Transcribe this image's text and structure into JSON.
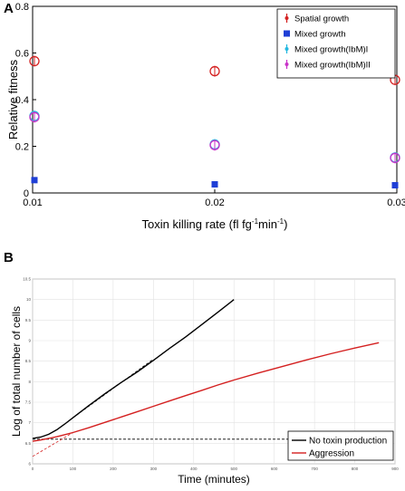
{
  "chart_data": [
    {
      "panel": "A",
      "type": "scatter",
      "title": "",
      "xlabel_main": "Toxin killing rate (fl fg",
      "xlabel_sup1": "-1",
      "xlabel_mid": "min",
      "xlabel_sup2": "-1",
      "xlabel_end": ")",
      "ylabel": "Relative fitness",
      "xlim": [
        0.01,
        0.03
      ],
      "ylim": [
        0,
        0.8
      ],
      "xticks": [
        0.01,
        0.02,
        0.03
      ],
      "xtick_labels": [
        "0.01",
        "0.02",
        "0.03"
      ],
      "yticks": [
        0,
        0.2,
        0.4,
        0.6,
        0.8
      ],
      "ytick_labels": [
        "0",
        "0.2",
        "0.4",
        "0.6",
        "0.8"
      ],
      "grid": false,
      "legend_position": "top-right",
      "series": [
        {
          "name": "Spatial growth",
          "marker": "circle-errorbar",
          "color": "#d42020",
          "x": [
            0.01,
            0.02,
            0.03
          ],
          "y": [
            0.565,
            0.522,
            0.485
          ]
        },
        {
          "name": "Mixed growth",
          "marker": "square",
          "color": "#1f3fd6",
          "x": [
            0.01,
            0.02,
            0.03
          ],
          "y": [
            0.055,
            0.037,
            0.033
          ]
        },
        {
          "name": "Mixed growth(IbM)I",
          "marker": "circle-errorbar",
          "color": "#22b8e0",
          "x": [
            0.01,
            0.02,
            0.03
          ],
          "y": [
            0.33,
            0.208,
            0.152
          ]
        },
        {
          "name": "Mixed growth(IbM)II",
          "marker": "circle-errorbar",
          "color": "#c832c8",
          "x": [
            0.01,
            0.02,
            0.03
          ],
          "y": [
            0.325,
            0.205,
            0.15
          ]
        }
      ]
    },
    {
      "panel": "B",
      "type": "line",
      "title": "",
      "xlabel": "Time (minutes)",
      "ylabel": "Log of total number of cells",
      "xlim": [
        0,
        900
      ],
      "ylim": [
        6,
        10.5
      ],
      "xticks": [
        0,
        100,
        200,
        300,
        400,
        500,
        600,
        700,
        800,
        900
      ],
      "xtick_labels": [
        "0",
        "100",
        "200",
        "300",
        "400",
        "500",
        "600",
        "700",
        "800",
        "900"
      ],
      "yticks": [
        6,
        6.5,
        7,
        7.5,
        8,
        8.5,
        9,
        9.5,
        10,
        10.5
      ],
      "ytick_labels": [
        "6",
        "6.5",
        "7",
        "7.5",
        "8",
        "8.5",
        "9",
        "9.5",
        "10",
        "10.5"
      ],
      "grid": true,
      "legend_position": "bottom-right",
      "series": [
        {
          "name": "No toxin production",
          "color": "#000000",
          "x": [
            0,
            20,
            40,
            60,
            80,
            100,
            140,
            180,
            220,
            260,
            300,
            340,
            380,
            420,
            460,
            500
          ],
          "y": [
            6.62,
            6.65,
            6.72,
            6.83,
            6.97,
            7.12,
            7.42,
            7.71,
            7.98,
            8.24,
            8.52,
            8.81,
            9.09,
            9.39,
            9.69,
            10.0
          ]
        },
        {
          "name": "Aggression",
          "color": "#d42020",
          "x": [
            0,
            20,
            40,
            60,
            80,
            100,
            140,
            180,
            220,
            260,
            300,
            340,
            380,
            420,
            460,
            500,
            560,
            620,
            680,
            740,
            800,
            860
          ],
          "y": [
            6.55,
            6.58,
            6.62,
            6.66,
            6.71,
            6.76,
            6.88,
            7.01,
            7.14,
            7.27,
            7.4,
            7.53,
            7.66,
            7.79,
            7.92,
            8.04,
            8.21,
            8.37,
            8.53,
            8.68,
            8.82,
            8.95
          ]
        }
      ],
      "reference_lines": [
        {
          "style": "dashed",
          "color": "#000000",
          "x": [
            0,
            900
          ],
          "y": [
            6.6,
            6.6
          ]
        },
        {
          "style": "dashed",
          "color": "#000000",
          "x": [
            100,
            300
          ],
          "y": [
            7.12,
            8.55
          ]
        },
        {
          "style": "dashed",
          "color": "#d42020",
          "x": [
            0,
            100
          ],
          "y": [
            6.18,
            6.76
          ]
        }
      ]
    }
  ]
}
